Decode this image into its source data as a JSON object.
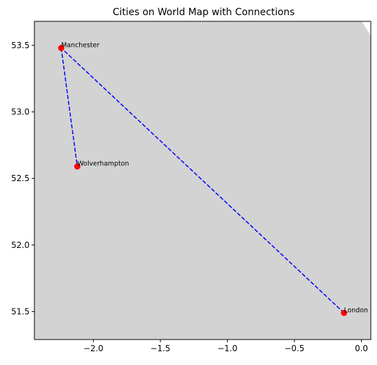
{
  "chart_data": {
    "type": "scatter",
    "title": "Cities on World Map with Connections",
    "xlabel": "",
    "ylabel": "",
    "xlim": [
      -2.44,
      0.07
    ],
    "ylim": [
      51.29,
      53.68
    ],
    "x_ticks": [
      -2.0,
      -1.5,
      -1.0,
      -0.5,
      0.0
    ],
    "x_tick_labels": [
      "−2.0",
      "−1.5",
      "−1.0",
      "−0.5",
      "0.0"
    ],
    "y_ticks": [
      51.5,
      52.0,
      52.5,
      53.0,
      53.5
    ],
    "y_tick_labels": [
      "51.5",
      "52.0",
      "52.5",
      "53.0",
      "53.5"
    ],
    "grid": false,
    "land_color": "#d3d3d3",
    "sea_color": "#ffffff",
    "point_color": "#ff0000",
    "line_color": "#0000ff",
    "line_style": "dashed",
    "cities": [
      {
        "name": "Manchester",
        "lon": -2.24,
        "lat": 53.48
      },
      {
        "name": "Wolverhampton",
        "lon": -2.12,
        "lat": 52.59
      },
      {
        "name": "London",
        "lon": -0.13,
        "lat": 51.49
      }
    ],
    "connection_path": [
      "London",
      "Manchester",
      "Wolverhampton"
    ]
  }
}
